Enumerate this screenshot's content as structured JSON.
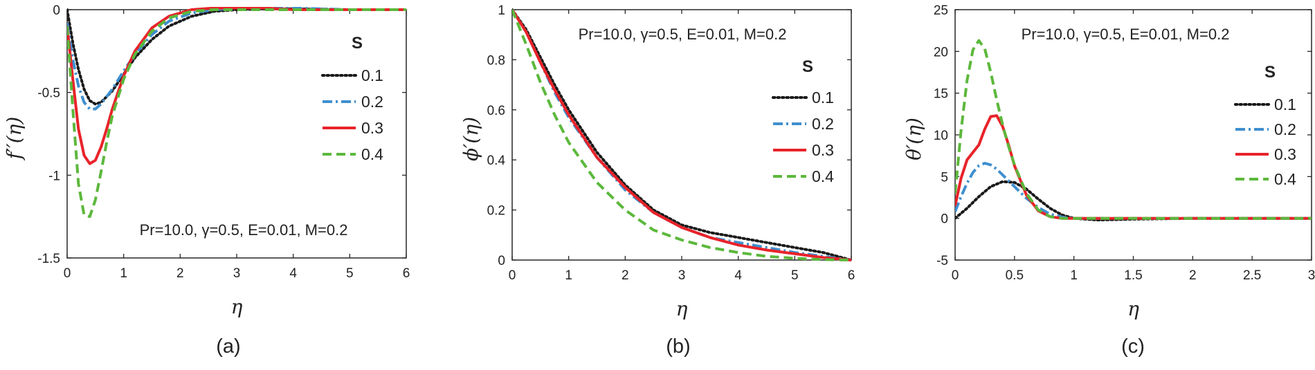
{
  "legend_title": "S",
  "annotation": "Pr=10.0, γ=0.5, E=0.01, M=0.2",
  "series_styles": [
    {
      "name": "0.1",
      "color": "#1a1a1a",
      "dash": "dotted"
    },
    {
      "name": "0.2",
      "color": "#3f8fcf",
      "dash": "dashdot"
    },
    {
      "name": "0.3",
      "color": "#e8232a",
      "dash": "solid"
    },
    {
      "name": "0.4",
      "color": "#5cb83c",
      "dash": "dashed"
    }
  ],
  "chart_data": [
    {
      "type": "line",
      "panel_label": "(a)",
      "title": "",
      "xlabel": "η",
      "ylabel": "f′′(η)",
      "xlim": [
        0,
        6
      ],
      "ylim": [
        -1.5,
        0
      ],
      "xticks": [
        "0",
        "1",
        "2",
        "3",
        "4",
        "5",
        "6"
      ],
      "xtick_values": [
        0,
        1,
        2,
        3,
        4,
        5,
        6
      ],
      "yticks": [
        "-1.5",
        "-1",
        "-0.5",
        "0"
      ],
      "ytick_values": [
        -1.5,
        -1,
        -0.5,
        0
      ],
      "legend_position": "right-upper",
      "annotation_position": "bottom",
      "series": [
        {
          "name": "0.1",
          "x": [
            0,
            0.1,
            0.2,
            0.3,
            0.4,
            0.5,
            0.6,
            0.8,
            1.0,
            1.2,
            1.5,
            1.8,
            2.2,
            2.6,
            3.0,
            3.5,
            4,
            5,
            6
          ],
          "y": [
            0,
            -0.2,
            -0.36,
            -0.48,
            -0.55,
            -0.57,
            -0.56,
            -0.49,
            -0.39,
            -0.29,
            -0.18,
            -0.1,
            -0.04,
            -0.01,
            0,
            0.005,
            0.005,
            0,
            0
          ]
        },
        {
          "name": "0.2",
          "x": [
            0,
            0.1,
            0.2,
            0.3,
            0.4,
            0.5,
            0.6,
            0.8,
            1.0,
            1.2,
            1.5,
            1.8,
            2.2,
            2.6,
            3.0,
            3.5,
            4,
            5,
            6
          ],
          "y": [
            -0.08,
            -0.3,
            -0.46,
            -0.56,
            -0.6,
            -0.6,
            -0.57,
            -0.48,
            -0.37,
            -0.27,
            -0.15,
            -0.07,
            -0.02,
            0,
            0.01,
            0.01,
            0.01,
            0,
            0
          ]
        },
        {
          "name": "0.3",
          "x": [
            0,
            0.1,
            0.2,
            0.3,
            0.4,
            0.5,
            0.6,
            0.7,
            0.8,
            1.0,
            1.2,
            1.5,
            1.8,
            2.2,
            2.6,
            3.0,
            3.5,
            4,
            5,
            6
          ],
          "y": [
            -0.1,
            -0.42,
            -0.72,
            -0.88,
            -0.93,
            -0.91,
            -0.83,
            -0.72,
            -0.6,
            -0.4,
            -0.25,
            -0.11,
            -0.04,
            0,
            0.01,
            0.01,
            0.01,
            0,
            0,
            0
          ]
        },
        {
          "name": "0.4",
          "x": [
            0,
            0.1,
            0.2,
            0.3,
            0.4,
            0.5,
            0.6,
            0.7,
            0.8,
            1.0,
            1.2,
            1.5,
            1.8,
            2.2,
            2.6,
            3.0,
            3.5,
            4,
            5,
            6
          ],
          "y": [
            -0.1,
            -0.6,
            -1.05,
            -1.24,
            -1.25,
            -1.15,
            -0.98,
            -0.8,
            -0.64,
            -0.42,
            -0.27,
            -0.13,
            -0.05,
            -0.01,
            0,
            0,
            0,
            0,
            0,
            0
          ]
        }
      ]
    },
    {
      "type": "line",
      "panel_label": "(b)",
      "title": "",
      "xlabel": "η",
      "ylabel": "ϕ′(η)",
      "xlim": [
        0,
        6
      ],
      "ylim": [
        0,
        1
      ],
      "xticks": [
        "0",
        "1",
        "2",
        "3",
        "4",
        "5",
        "6"
      ],
      "xtick_values": [
        0,
        1,
        2,
        3,
        4,
        5,
        6
      ],
      "yticks": [
        "0",
        "0.2",
        "0.4",
        "0.6",
        "0.8",
        "1"
      ],
      "ytick_values": [
        0,
        0.2,
        0.4,
        0.6,
        0.8,
        1
      ],
      "legend_position": "right-middle",
      "annotation_position": "top",
      "series": [
        {
          "name": "0.1",
          "x": [
            0,
            0.25,
            0.5,
            0.75,
            1.0,
            1.5,
            2.0,
            2.5,
            3.0,
            3.5,
            4.0,
            4.5,
            5.0,
            5.5,
            6.0
          ],
          "y": [
            1,
            0.92,
            0.81,
            0.7,
            0.6,
            0.43,
            0.3,
            0.2,
            0.14,
            0.11,
            0.09,
            0.07,
            0.05,
            0.03,
            0
          ]
        },
        {
          "name": "0.2",
          "x": [
            0,
            0.25,
            0.5,
            0.75,
            1.0,
            1.5,
            2.0,
            2.5,
            3.0,
            3.5,
            4.0,
            4.5,
            5.0,
            5.5,
            6.0
          ],
          "y": [
            1,
            0.91,
            0.79,
            0.67,
            0.57,
            0.41,
            0.28,
            0.19,
            0.13,
            0.09,
            0.07,
            0.05,
            0.03,
            0.015,
            0
          ]
        },
        {
          "name": "0.3",
          "x": [
            0,
            0.25,
            0.5,
            0.75,
            1.0,
            1.5,
            2.0,
            2.5,
            3.0,
            3.5,
            4.0,
            4.5,
            5.0,
            5.5,
            6.0
          ],
          "y": [
            1,
            0.91,
            0.79,
            0.68,
            0.58,
            0.41,
            0.29,
            0.19,
            0.13,
            0.09,
            0.06,
            0.04,
            0.025,
            0.01,
            0
          ]
        },
        {
          "name": "0.4",
          "x": [
            0,
            0.25,
            0.5,
            0.75,
            1.0,
            1.5,
            2.0,
            2.5,
            3.0,
            3.5,
            4.0,
            4.5,
            5.0,
            5.5,
            6.0
          ],
          "y": [
            1,
            0.86,
            0.71,
            0.58,
            0.47,
            0.31,
            0.2,
            0.12,
            0.08,
            0.05,
            0.03,
            0.015,
            0.007,
            0.002,
            0
          ]
        }
      ]
    },
    {
      "type": "line",
      "panel_label": "(c)",
      "title": "",
      "xlabel": "η",
      "ylabel": "θ′(η)",
      "xlim": [
        0,
        3
      ],
      "ylim": [
        -5,
        25
      ],
      "xticks": [
        "0",
        "0.5",
        "1",
        "1.5",
        "2",
        "2.5",
        "3"
      ],
      "xtick_values": [
        0,
        0.5,
        1,
        1.5,
        2,
        2.5,
        3
      ],
      "yticks": [
        "-5",
        "0",
        "5",
        "10",
        "15",
        "20",
        "25"
      ],
      "ytick_values": [
        -5,
        0,
        5,
        10,
        15,
        20,
        25
      ],
      "legend_position": "right-middle",
      "annotation_position": "top",
      "series": [
        {
          "name": "0.1",
          "x": [
            0,
            0.1,
            0.2,
            0.3,
            0.4,
            0.5,
            0.6,
            0.7,
            0.8,
            0.9,
            1.0,
            1.2,
            1.5,
            2.0,
            2.5,
            3.0
          ],
          "y": [
            0,
            1.2,
            2.6,
            3.8,
            4.4,
            4.3,
            3.5,
            2.3,
            1.2,
            0.4,
            0.0,
            -0.2,
            -0.1,
            0,
            0,
            0
          ]
        },
        {
          "name": "0.2",
          "x": [
            0,
            0.05,
            0.1,
            0.15,
            0.2,
            0.25,
            0.3,
            0.35,
            0.4,
            0.5,
            0.6,
            0.7,
            0.8,
            0.9,
            1.0,
            1.2,
            1.5,
            2.0,
            2.5,
            3.0
          ],
          "y": [
            0.8,
            2.6,
            4.2,
            5.5,
            6.3,
            6.6,
            6.4,
            5.9,
            5.2,
            3.8,
            2.4,
            1.3,
            0.5,
            0.15,
            0,
            0,
            0,
            0,
            0,
            0
          ]
        },
        {
          "name": "0.3",
          "x": [
            0,
            0.05,
            0.1,
            0.15,
            0.2,
            0.25,
            0.3,
            0.35,
            0.4,
            0.45,
            0.5,
            0.6,
            0.7,
            0.8,
            0.9,
            1.0,
            1.2,
            1.5,
            2.0,
            2.5,
            3.0
          ],
          "y": [
            1.5,
            4.8,
            7.0,
            7.9,
            8.8,
            10.7,
            12.2,
            12.3,
            11.0,
            8.8,
            6.3,
            2.8,
            0.9,
            0.2,
            0,
            0,
            0,
            0,
            0,
            0,
            0
          ]
        },
        {
          "name": "0.4",
          "x": [
            0,
            0.05,
            0.1,
            0.15,
            0.2,
            0.25,
            0.3,
            0.35,
            0.4,
            0.45,
            0.5,
            0.6,
            0.7,
            0.8,
            0.9,
            1.0,
            1.2,
            1.5,
            2.0,
            2.5,
            3.0
          ],
          "y": [
            3,
            10.5,
            16.5,
            20.2,
            21.3,
            20.3,
            17.5,
            14.2,
            11.2,
            8.6,
            6.4,
            3.0,
            1.0,
            0.2,
            0,
            0,
            0,
            0,
            0,
            0,
            0
          ]
        }
      ]
    }
  ]
}
